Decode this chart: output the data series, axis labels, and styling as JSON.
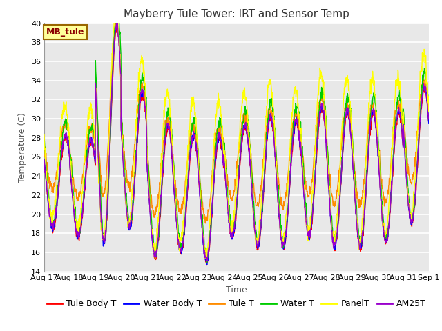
{
  "title": "Mayberry Tule Tower: IRT and Sensor Temp",
  "xlabel": "Time",
  "ylabel": "Temperature (C)",
  "ylim": [
    14,
    40
  ],
  "yticks": [
    14,
    16,
    18,
    20,
    22,
    24,
    26,
    28,
    30,
    32,
    34,
    36,
    38,
    40
  ],
  "series_colors": {
    "Tule Body T": "#FF0000",
    "Water Body T": "#0000FF",
    "Tule T": "#FF8C00",
    "Water T": "#00CC00",
    "PanelT": "#FFFF00",
    "AM25T": "#9900CC"
  },
  "legend_label": "MB_tule",
  "legend_box_color": "#FFFF99",
  "legend_box_edge": "#996600",
  "background_color": "#E8E8E8",
  "grid_color": "#FFFFFF",
  "num_days": 15,
  "start_day": 17,
  "title_fontsize": 11,
  "axis_label_fontsize": 9,
  "tick_fontsize": 8,
  "legend_fontsize": 9
}
